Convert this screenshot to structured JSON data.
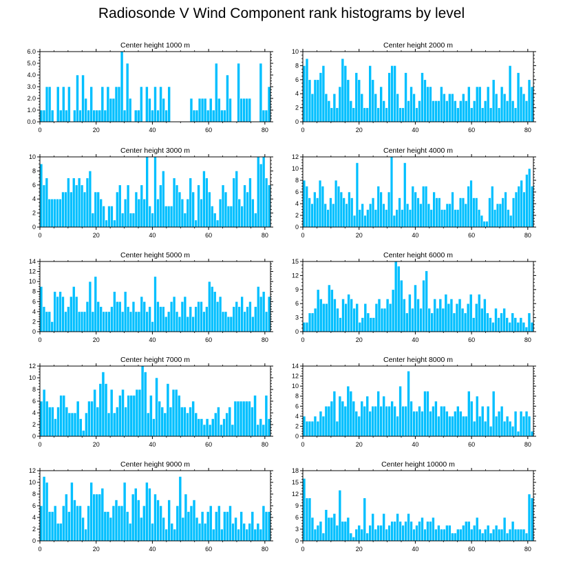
{
  "title": "Radiosonde V Wind Component rank histograms by level",
  "colors": {
    "bar": "#00BFFF",
    "bar_edge": "#ffffff",
    "axis": "#000000"
  },
  "chart_data": [
    {
      "type": "bar",
      "title": "Center height 1000 m",
      "xlim": [
        0,
        82
      ],
      "ylim": [
        0,
        6
      ],
      "xticks": [
        0,
        20,
        40,
        60,
        80
      ],
      "yticks": [
        0,
        1,
        2,
        3,
        4,
        5,
        6
      ],
      "ytick_labels": [
        "0.0",
        "1.0",
        "2.0",
        "3.0",
        "4.0",
        "5.0",
        "6.0"
      ],
      "values": [
        1,
        1,
        3,
        3,
        1,
        0,
        3,
        1,
        3,
        1,
        3,
        0,
        1,
        4,
        1,
        4,
        2,
        1,
        3,
        1,
        1,
        1,
        3,
        1,
        3,
        2,
        2,
        3,
        3,
        6,
        1,
        5,
        2,
        0,
        1,
        1,
        3,
        0,
        3,
        2,
        1,
        3,
        1,
        3,
        2,
        1,
        3,
        0,
        0,
        0,
        0,
        0,
        0,
        0,
        2,
        1,
        1,
        2,
        2,
        2,
        1,
        2,
        1,
        5,
        2,
        1,
        1,
        4,
        2,
        0,
        0,
        5,
        2,
        2,
        2,
        2,
        0,
        0,
        0,
        5,
        1,
        1,
        3
      ]
    },
    {
      "type": "bar",
      "title": "Center height 2000 m",
      "xlim": [
        0,
        82
      ],
      "ylim": [
        0,
        10
      ],
      "xticks": [
        0,
        20,
        40,
        60,
        80
      ],
      "yticks": [
        0,
        2,
        4,
        6,
        8,
        10
      ],
      "ytick_labels": [
        "0",
        "2",
        "4",
        "6",
        "8",
        "10"
      ],
      "values": [
        8,
        9,
        6,
        4,
        6,
        6,
        7,
        8,
        4,
        3,
        2,
        4,
        2,
        5,
        9,
        8,
        6,
        3,
        2,
        7,
        6,
        4,
        2,
        2,
        8,
        6,
        4,
        2,
        5,
        3,
        2,
        7,
        8,
        8,
        4,
        2,
        2,
        7,
        3,
        5,
        4,
        2,
        3,
        7,
        6,
        5,
        5,
        3,
        3,
        3,
        5,
        4,
        3,
        4,
        4,
        3,
        2,
        3,
        4,
        3,
        5,
        2,
        3,
        5,
        5,
        2,
        3,
        5,
        2,
        6,
        4,
        2,
        5,
        4,
        3,
        8,
        3,
        2,
        7,
        5,
        4,
        3,
        6,
        5
      ]
    },
    {
      "type": "bar",
      "title": "Center height 3000 m",
      "xlim": [
        0,
        82
      ],
      "ylim": [
        0,
        10
      ],
      "xticks": [
        0,
        20,
        40,
        60,
        80
      ],
      "yticks": [
        0,
        2,
        4,
        6,
        8,
        10
      ],
      "ytick_labels": [
        "0",
        "2",
        "4",
        "6",
        "8",
        "10"
      ],
      "values": [
        9,
        6,
        7,
        4,
        4,
        4,
        4,
        4,
        5,
        5,
        7,
        5,
        7,
        6,
        7,
        6,
        5,
        7,
        8,
        2,
        5,
        5,
        4,
        3,
        1,
        3,
        3,
        1,
        5,
        6,
        2,
        4,
        6,
        2,
        2,
        5,
        4,
        6,
        4,
        10,
        3,
        2,
        10,
        4,
        6,
        8,
        3,
        3,
        3,
        7,
        6,
        5,
        4,
        2,
        4,
        7,
        5,
        1,
        6,
        4,
        8,
        7,
        5,
        3,
        2,
        1,
        4,
        6,
        5,
        3,
        3,
        7,
        8,
        4,
        3,
        6,
        5,
        7,
        4,
        2,
        10,
        9,
        10,
        7,
        6
      ]
    },
    {
      "type": "bar",
      "title": "Center height 4000 m",
      "xlim": [
        0,
        82
      ],
      "ylim": [
        0,
        12
      ],
      "xticks": [
        0,
        20,
        40,
        60,
        80
      ],
      "yticks": [
        0,
        2,
        4,
        6,
        8,
        10,
        12
      ],
      "ytick_labels": [
        "0",
        "2",
        "4",
        "6",
        "8",
        "10",
        "12"
      ],
      "values": [
        8,
        7,
        5,
        4,
        6,
        5,
        8,
        7,
        4,
        3,
        5,
        4,
        8,
        7,
        6,
        5,
        4,
        6,
        5,
        2,
        11,
        3,
        4,
        2,
        3,
        4,
        5,
        3,
        7,
        6,
        4,
        3,
        6,
        12,
        2,
        3,
        5,
        3,
        11,
        4,
        3,
        7,
        6,
        5,
        4,
        7,
        7,
        4,
        3,
        6,
        5,
        5,
        3,
        3,
        4,
        4,
        6,
        3,
        3,
        5,
        5,
        4,
        7,
        8,
        5,
        5,
        3,
        2,
        1,
        1,
        5,
        7,
        3,
        4,
        4,
        5,
        6,
        3,
        2,
        5,
        6,
        7,
        8,
        6,
        9,
        10,
        7
      ]
    },
    {
      "type": "bar",
      "title": "Center height 5000 m",
      "xlim": [
        0,
        82
      ],
      "ylim": [
        0,
        14
      ],
      "xticks": [
        0,
        20,
        40,
        60,
        80
      ],
      "yticks": [
        0,
        2,
        4,
        6,
        8,
        10,
        12,
        14
      ],
      "ytick_labels": [
        "0",
        "2",
        "4",
        "6",
        "8",
        "10",
        "12",
        "14"
      ],
      "values": [
        9,
        5,
        4,
        4,
        2,
        8,
        7,
        8,
        7,
        4,
        5,
        7,
        9,
        7,
        4,
        4,
        4,
        6,
        10,
        4,
        11,
        6,
        5,
        4,
        4,
        4,
        5,
        8,
        6,
        6,
        4,
        8,
        5,
        4,
        6,
        4,
        4,
        7,
        6,
        4,
        5,
        2,
        11,
        6,
        5,
        5,
        3,
        4,
        6,
        7,
        4,
        3,
        6,
        7,
        3,
        5,
        3,
        5,
        6,
        6,
        4,
        5,
        10,
        9,
        8,
        6,
        7,
        4,
        4,
        3,
        3,
        5,
        6,
        5,
        7,
        4,
        5,
        6,
        3,
        5,
        9,
        7,
        8,
        4,
        7
      ]
    },
    {
      "type": "bar",
      "title": "Center height 6000 m",
      "xlim": [
        0,
        82
      ],
      "ylim": [
        0,
        15
      ],
      "xticks": [
        0,
        20,
        40,
        60,
        80
      ],
      "yticks": [
        0,
        3,
        6,
        9,
        12,
        15
      ],
      "ytick_labels": [
        "0",
        "3",
        "6",
        "9",
        "12",
        "15"
      ],
      "values": [
        2,
        2,
        4,
        4,
        5,
        9,
        7,
        6,
        6,
        10,
        9,
        7,
        5,
        3,
        7,
        6,
        8,
        7,
        5,
        6,
        2,
        3,
        6,
        4,
        3,
        3,
        6,
        7,
        5,
        5,
        7,
        6,
        9,
        15,
        14,
        11,
        7,
        4,
        8,
        5,
        10,
        7,
        5,
        11,
        13,
        5,
        4,
        7,
        5,
        7,
        5,
        8,
        6,
        7,
        4,
        6,
        7,
        5,
        4,
        6,
        8,
        3,
        6,
        8,
        5,
        7,
        4,
        3,
        2,
        5,
        3,
        4,
        5,
        3,
        2,
        4,
        3,
        2,
        3,
        2,
        1,
        4,
        2
      ]
    },
    {
      "type": "bar",
      "title": "Center height 7000 m",
      "xlim": [
        0,
        82
      ],
      "ylim": [
        0,
        12
      ],
      "xticks": [
        0,
        20,
        40,
        60,
        80
      ],
      "yticks": [
        0,
        2,
        4,
        6,
        8,
        10,
        12
      ],
      "ytick_labels": [
        "0",
        "2",
        "4",
        "6",
        "8",
        "10",
        "12"
      ],
      "values": [
        6,
        8,
        6,
        5,
        5,
        3,
        5,
        7,
        7,
        5,
        4,
        4,
        4,
        6,
        3,
        1,
        4,
        6,
        6,
        8,
        5,
        9,
        11,
        9,
        4,
        8,
        4,
        5,
        7,
        8,
        5,
        7,
        7,
        7,
        8,
        8,
        12,
        11,
        4,
        7,
        3,
        10,
        6,
        5,
        4,
        9,
        5,
        8,
        8,
        7,
        5,
        5,
        4,
        5,
        6,
        4,
        3,
        3,
        2,
        3,
        2,
        3,
        4,
        5,
        2,
        3,
        4,
        5,
        2,
        6,
        6,
        6,
        6,
        6,
        6,
        5,
        7,
        2,
        3,
        2,
        7,
        3
      ]
    },
    {
      "type": "bar",
      "title": "Center height 8000 m",
      "xlim": [
        0,
        82
      ],
      "ylim": [
        0,
        14
      ],
      "xticks": [
        0,
        20,
        40,
        60,
        80
      ],
      "yticks": [
        0,
        2,
        4,
        6,
        8,
        10,
        12,
        14
      ],
      "ytick_labels": [
        "0",
        "2",
        "4",
        "6",
        "8",
        "10",
        "12",
        "14"
      ],
      "values": [
        4,
        3,
        3,
        3,
        4,
        3,
        5,
        4,
        6,
        6,
        7,
        9,
        3,
        8,
        7,
        6,
        10,
        9,
        7,
        5,
        4,
        7,
        6,
        8,
        5,
        6,
        6,
        9,
        6,
        8,
        6,
        6,
        7,
        6,
        4,
        10,
        6,
        6,
        13,
        7,
        5,
        5,
        6,
        5,
        9,
        9,
        5,
        6,
        7,
        4,
        6,
        6,
        5,
        4,
        4,
        5,
        6,
        5,
        4,
        4,
        9,
        7,
        3,
        8,
        4,
        6,
        3,
        6,
        2,
        9,
        4,
        5,
        6,
        3,
        4,
        3,
        2,
        5,
        1,
        5,
        4,
        5,
        4,
        1
      ]
    },
    {
      "type": "bar",
      "title": "Center height 9000 m",
      "xlim": [
        0,
        82
      ],
      "ylim": [
        0,
        12
      ],
      "xticks": [
        0,
        20,
        40,
        60,
        80
      ],
      "yticks": [
        0,
        2,
        4,
        6,
        8,
        10,
        12
      ],
      "ytick_labels": [
        "0",
        "2",
        "4",
        "6",
        "8",
        "10",
        "12"
      ],
      "values": [
        6,
        11,
        10,
        5,
        5,
        6,
        3,
        3,
        6,
        8,
        5,
        10,
        7,
        6,
        6,
        4,
        2,
        6,
        10,
        8,
        8,
        8,
        9,
        5,
        5,
        4,
        6,
        7,
        6,
        6,
        10,
        5,
        3,
        8,
        9,
        7,
        4,
        6,
        10,
        9,
        3,
        8,
        7,
        6,
        4,
        2,
        7,
        3,
        2,
        6,
        11,
        4,
        8,
        5,
        6,
        7,
        4,
        3,
        5,
        3,
        5,
        6,
        2,
        5,
        6,
        2,
        5,
        5,
        6,
        3,
        4,
        2,
        5,
        3,
        2,
        3,
        5,
        2,
        3,
        2,
        6,
        5,
        5
      ]
    },
    {
      "type": "bar",
      "title": "Center height 10000 m",
      "xlim": [
        0,
        82
      ],
      "ylim": [
        0,
        18
      ],
      "xticks": [
        0,
        20,
        40,
        60,
        80
      ],
      "yticks": [
        0,
        3,
        6,
        9,
        12,
        15,
        18
      ],
      "ytick_labels": [
        "0",
        "3",
        "6",
        "9",
        "12",
        "15",
        "18"
      ],
      "values": [
        16,
        11,
        11,
        6,
        3,
        4,
        5,
        2,
        8,
        6,
        6,
        7,
        4,
        13,
        5,
        5,
        6,
        2,
        1,
        3,
        4,
        3,
        11,
        2,
        4,
        7,
        3,
        4,
        4,
        7,
        3,
        4,
        5,
        5,
        7,
        5,
        4,
        5,
        7,
        5,
        3,
        4,
        5,
        6,
        3,
        5,
        5,
        6,
        3,
        4,
        3,
        3,
        4,
        4,
        2,
        2,
        3,
        3,
        4,
        5,
        5,
        3,
        4,
        6,
        3,
        2,
        3,
        4,
        2,
        3,
        4,
        3,
        3,
        6,
        2,
        3,
        5,
        3,
        3,
        3,
        3,
        2,
        12,
        11
      ]
    }
  ]
}
